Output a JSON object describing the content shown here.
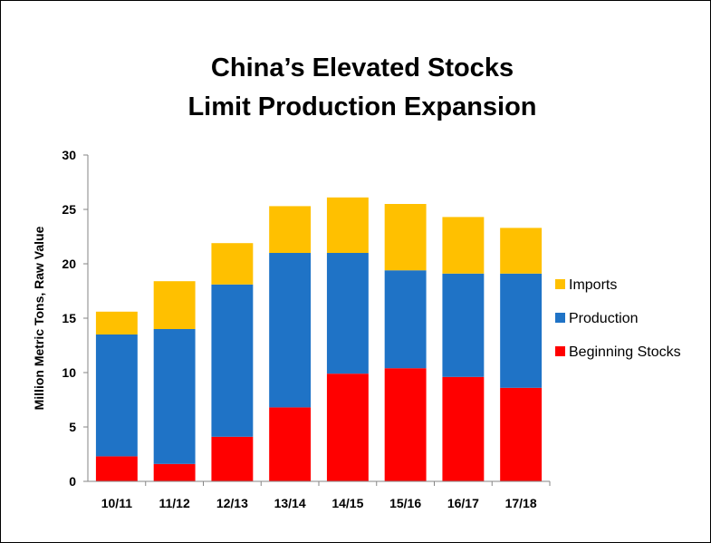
{
  "chart_data": {
    "type": "bar",
    "stacked": true,
    "title": "China’s Elevated Stocks\nLimit Production Expansion",
    "title_lines": [
      "China’s Elevated Stocks",
      "Limit Production Expansion"
    ],
    "xlabel": "",
    "ylabel": "Million Metric Tons, Raw Value",
    "ylim": [
      0,
      30
    ],
    "yticks": [
      0,
      5,
      10,
      15,
      20,
      25,
      30
    ],
    "grid": false,
    "legend_position": "right",
    "categories": [
      "10/11",
      "11/12",
      "12/13",
      "13/14",
      "14/15",
      "15/16",
      "16/17",
      "17/18"
    ],
    "series": [
      {
        "name": "Beginning Stocks",
        "color": "#ff0000",
        "values": [
          2.3,
          1.6,
          4.1,
          6.8,
          9.9,
          10.4,
          9.6,
          8.6
        ]
      },
      {
        "name": "Production",
        "color": "#1f73c6",
        "values": [
          11.2,
          12.4,
          14.0,
          14.2,
          11.1,
          9.0,
          9.5,
          10.5
        ]
      },
      {
        "name": "Imports",
        "color": "#ffc000",
        "values": [
          2.1,
          4.4,
          3.8,
          4.3,
          5.1,
          6.1,
          5.2,
          4.2
        ]
      }
    ],
    "legend_order": [
      "Imports",
      "Production",
      "Beginning Stocks"
    ]
  }
}
